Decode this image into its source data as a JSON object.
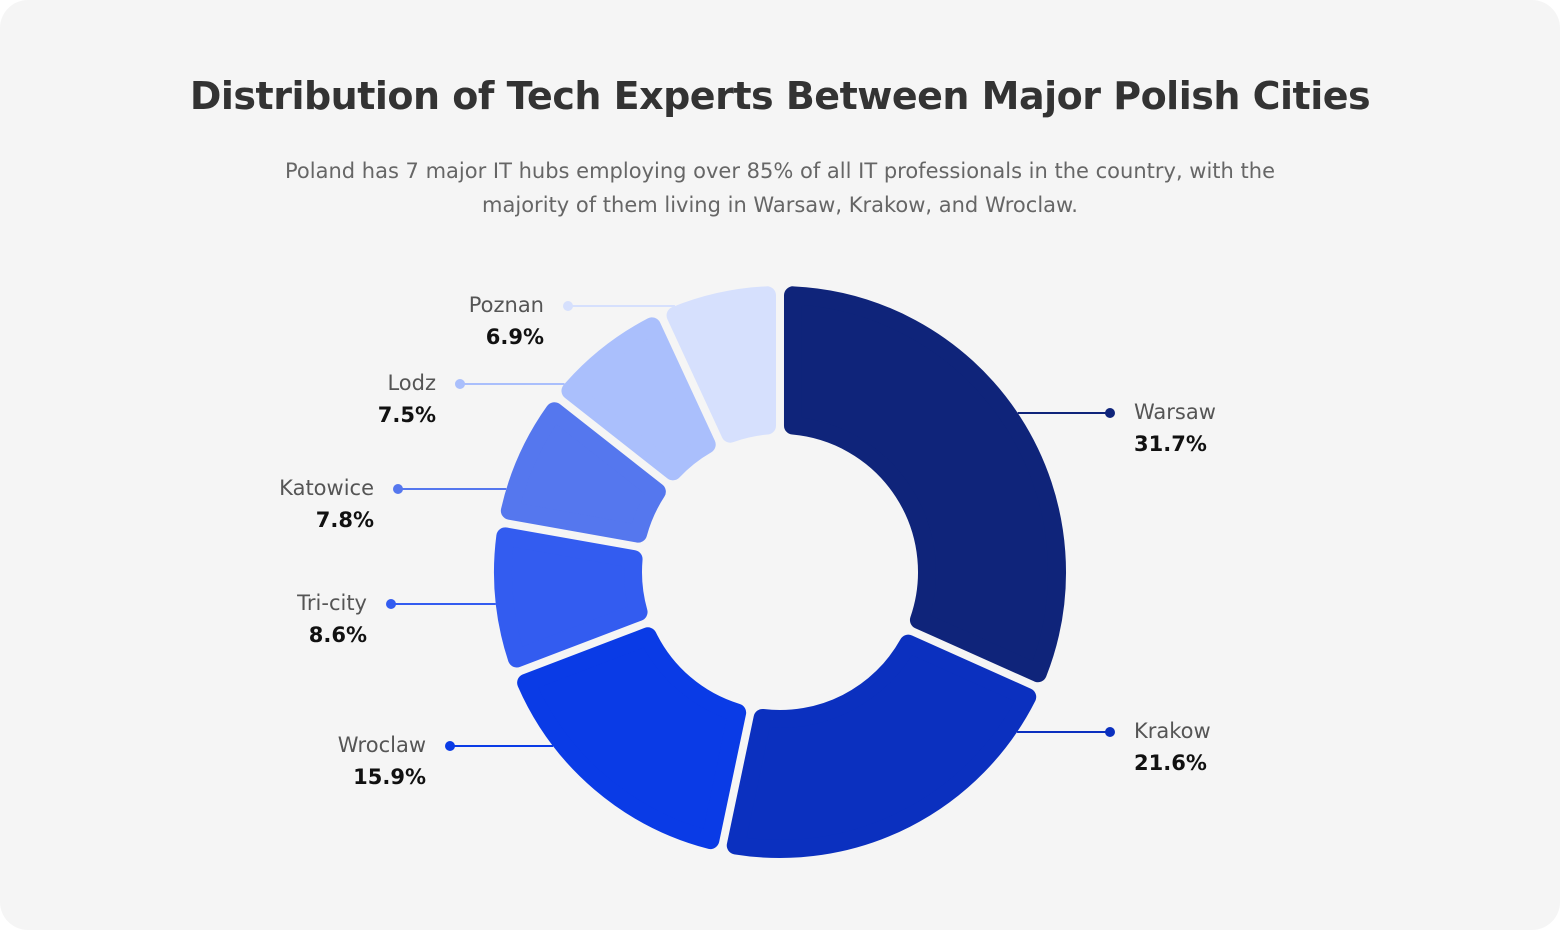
{
  "chart_data": {
    "type": "donut",
    "title": "Distribution of Tech Experts Between Major Polish Cities",
    "subtitle": "Poland has 7 major IT hubs employing over 85% of all IT professionals in the country, with the majority of them living in Warsaw, Krakow, and Wroclaw.",
    "categories": [
      "Warsaw",
      "Krakow",
      "Wroclaw",
      "Tri-city",
      "Katowice",
      "Lodz",
      "Poznan"
    ],
    "values": [
      31.7,
      21.6,
      15.9,
      8.6,
      7.8,
      7.5,
      6.9
    ],
    "value_labels": [
      "31.7%",
      "21.6%",
      "15.9%",
      "8.6%",
      "7.8%",
      "7.5%",
      "6.9%"
    ],
    "colors": [
      "#0f247a",
      "#0b30bf",
      "#0a3be6",
      "#335cf0",
      "#5577ee",
      "#aabffc",
      "#d6e0fd"
    ]
  }
}
